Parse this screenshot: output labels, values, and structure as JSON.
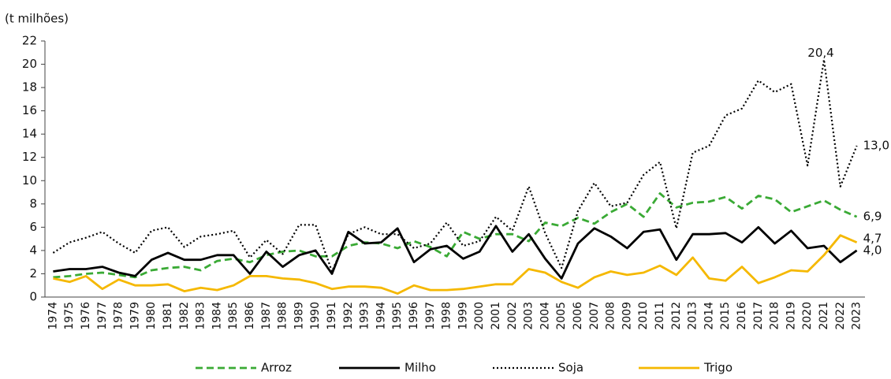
{
  "chart_data": {
    "type": "line",
    "y_label": "(t milhões)",
    "categories": [
      "1974",
      "1975",
      "1976",
      "1977",
      "1978",
      "1979",
      "1980",
      "1981",
      "1982",
      "1983",
      "1984",
      "1985",
      "1986",
      "1987",
      "1988",
      "1989",
      "1990",
      "1991",
      "1992",
      "1993",
      "1994",
      "1995",
      "1996",
      "1997",
      "1998",
      "1999",
      "2000",
      "2001",
      "2002",
      "2003",
      "2004",
      "2005",
      "2006",
      "2007",
      "2008",
      "2009",
      "2010",
      "2011",
      "2012",
      "2013",
      "2014",
      "2015",
      "2016",
      "2017",
      "2018",
      "2019",
      "2020",
      "2021",
      "2022",
      "2023"
    ],
    "ylim": [
      0,
      22
    ],
    "yticks": [
      0,
      2,
      4,
      6,
      8,
      10,
      12,
      14,
      16,
      18,
      20,
      22
    ],
    "grid": false,
    "legend": "bottom",
    "series": [
      {
        "name": "Arroz",
        "color": "#3aaa35",
        "dash": "dashed",
        "values": [
          1.7,
          1.8,
          2.0,
          2.1,
          1.9,
          1.7,
          2.3,
          2.5,
          2.6,
          2.3,
          3.1,
          3.3,
          3.0,
          3.6,
          3.9,
          4.0,
          3.5,
          3.5,
          4.4,
          4.7,
          4.6,
          4.2,
          4.8,
          4.3,
          3.5,
          5.6,
          5.0,
          5.4,
          5.4,
          4.8,
          6.4,
          6.1,
          6.8,
          6.3,
          7.3,
          8.0,
          6.9,
          8.9,
          7.7,
          8.1,
          8.2,
          8.6,
          7.6,
          8.7,
          8.4,
          7.3,
          7.8,
          8.3,
          7.5,
          6.9
        ],
        "value_labels": [
          null,
          null,
          null,
          null,
          null,
          null,
          null,
          null,
          null,
          null,
          null,
          null,
          null,
          null,
          null,
          null,
          null,
          null,
          null,
          null,
          null,
          null,
          null,
          null,
          null,
          null,
          null,
          null,
          null,
          null,
          null,
          null,
          null,
          null,
          null,
          null,
          null,
          null,
          null,
          null,
          null,
          null,
          null,
          null,
          null,
          null,
          null,
          null,
          null,
          "6,9"
        ]
      },
      {
        "name": "Milho",
        "color": "#000000",
        "dash": "solid",
        "values": [
          2.2,
          2.4,
          2.4,
          2.6,
          2.1,
          1.8,
          3.2,
          3.8,
          3.2,
          3.2,
          3.6,
          3.6,
          2.0,
          3.9,
          2.6,
          3.6,
          4.0,
          2.0,
          5.6,
          4.6,
          4.7,
          5.9,
          3.0,
          4.1,
          4.4,
          3.3,
          3.9,
          6.1,
          3.9,
          5.4,
          3.3,
          1.6,
          4.6,
          5.9,
          5.2,
          4.2,
          5.6,
          5.8,
          3.2,
          5.4,
          5.4,
          5.5,
          4.7,
          6.0,
          4.6,
          5.7,
          4.2,
          4.4,
          3.0,
          4.0
        ],
        "value_labels": [
          null,
          null,
          null,
          null,
          null,
          null,
          null,
          null,
          null,
          null,
          null,
          null,
          null,
          null,
          null,
          null,
          null,
          null,
          null,
          null,
          null,
          null,
          null,
          null,
          null,
          null,
          null,
          null,
          null,
          null,
          null,
          null,
          null,
          null,
          null,
          null,
          null,
          null,
          null,
          null,
          null,
          null,
          null,
          null,
          null,
          null,
          null,
          null,
          null,
          "4,0"
        ]
      },
      {
        "name": "Soja",
        "color": "#000000",
        "dash": "dotted",
        "values": [
          3.8,
          4.7,
          5.1,
          5.6,
          4.6,
          3.8,
          5.7,
          6.0,
          4.3,
          5.2,
          5.4,
          5.7,
          3.4,
          4.9,
          3.7,
          6.2,
          6.2,
          2.2,
          5.4,
          6.0,
          5.4,
          5.4,
          4.2,
          4.6,
          6.4,
          4.4,
          4.8,
          6.9,
          5.7,
          9.5,
          5.5,
          2.5,
          7.4,
          9.8,
          7.8,
          8.1,
          10.5,
          11.6,
          5.9,
          12.4,
          13.0,
          15.6,
          16.2,
          18.6,
          17.6,
          18.3,
          11.3,
          20.4,
          9.5,
          13.0
        ],
        "value_labels": [
          null,
          null,
          null,
          null,
          null,
          null,
          null,
          null,
          null,
          null,
          null,
          null,
          null,
          null,
          null,
          null,
          null,
          null,
          null,
          null,
          null,
          null,
          null,
          null,
          null,
          null,
          null,
          null,
          null,
          null,
          null,
          null,
          null,
          null,
          null,
          null,
          null,
          null,
          null,
          null,
          null,
          null,
          null,
          null,
          null,
          null,
          null,
          "20,4",
          null,
          "13,0"
        ]
      },
      {
        "name": "Trigo",
        "color": "#f5b800",
        "dash": "solid",
        "values": [
          1.6,
          1.3,
          1.8,
          0.7,
          1.5,
          1.0,
          1.0,
          1.1,
          0.5,
          0.8,
          0.6,
          1.0,
          1.8,
          1.8,
          1.6,
          1.5,
          1.2,
          0.7,
          0.9,
          0.9,
          0.8,
          0.3,
          1.0,
          0.6,
          0.6,
          0.7,
          0.9,
          1.1,
          1.1,
          2.4,
          2.1,
          1.3,
          0.8,
          1.7,
          2.2,
          1.9,
          2.1,
          2.7,
          1.9,
          3.4,
          1.6,
          1.4,
          2.6,
          1.2,
          1.7,
          2.3,
          2.2,
          3.6,
          5.3,
          4.7
        ],
        "value_labels": [
          null,
          null,
          null,
          null,
          null,
          null,
          null,
          null,
          null,
          null,
          null,
          null,
          null,
          null,
          null,
          null,
          null,
          null,
          null,
          null,
          null,
          null,
          null,
          null,
          null,
          null,
          null,
          null,
          null,
          null,
          null,
          null,
          null,
          null,
          null,
          null,
          null,
          null,
          null,
          null,
          null,
          null,
          null,
          null,
          null,
          null,
          null,
          null,
          null,
          "4,7"
        ]
      }
    ]
  }
}
